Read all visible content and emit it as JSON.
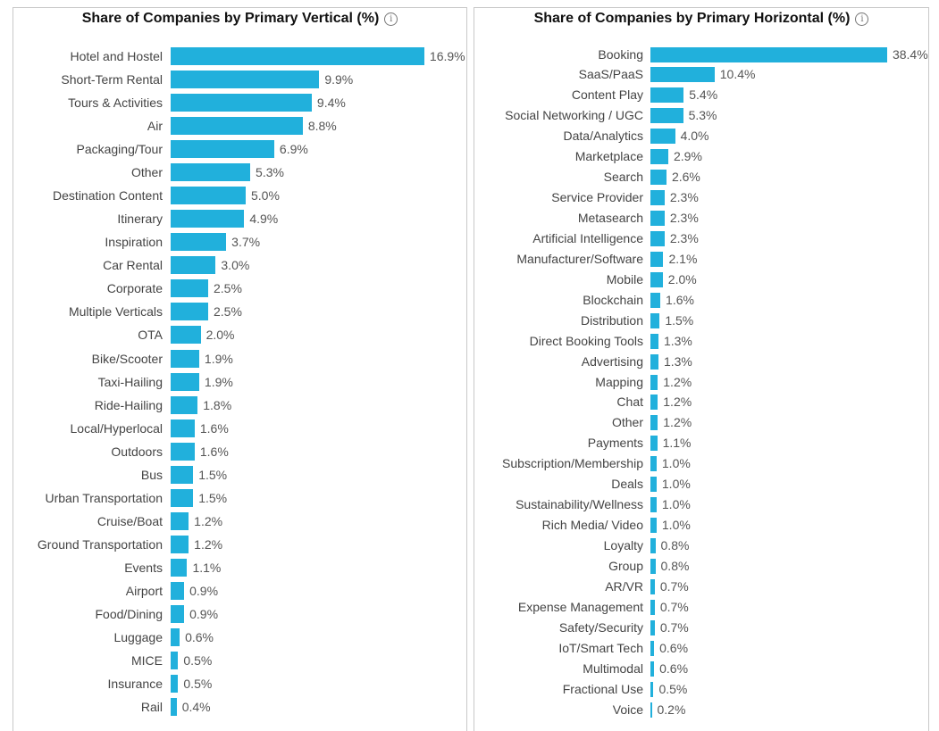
{
  "chart_data": [
    {
      "type": "bar",
      "orientation": "horizontal",
      "title": "Share of Companies by Primary Vertical (%)",
      "bar_color": "#21b0dc",
      "categories": [
        "Hotel and Hostel",
        "Short-Term Rental",
        "Tours & Activities",
        "Air",
        "Packaging/Tour",
        "Other",
        "Destination Content",
        "Itinerary",
        "Inspiration",
        "Car Rental",
        "Corporate",
        "Multiple Verticals",
        "OTA",
        "Bike/Scooter",
        "Taxi-Hailing",
        "Ride-Hailing",
        "Local/Hyperlocal",
        "Outdoors",
        "Bus",
        "Urban Transportation",
        "Cruise/Boat",
        "Ground Transportation",
        "Events",
        "Airport",
        "Food/Dining",
        "Luggage",
        "MICE",
        "Insurance",
        "Rail"
      ],
      "values": [
        16.9,
        9.9,
        9.4,
        8.8,
        6.9,
        5.3,
        5.0,
        4.9,
        3.7,
        3.0,
        2.5,
        2.5,
        2.0,
        1.9,
        1.9,
        1.8,
        1.6,
        1.6,
        1.5,
        1.5,
        1.2,
        1.2,
        1.1,
        0.9,
        0.9,
        0.6,
        0.5,
        0.5,
        0.4
      ],
      "labels": [
        "16.9%",
        "9.9%",
        "9.4%",
        "8.8%",
        "6.9%",
        "5.3%",
        "5.0%",
        "4.9%",
        "3.7%",
        "3.0%",
        "2.5%",
        "2.5%",
        "2.0%",
        "1.9%",
        "1.9%",
        "1.8%",
        "1.6%",
        "1.6%",
        "1.5%",
        "1.5%",
        "1.2%",
        "1.2%",
        "1.1%",
        "0.9%",
        "0.9%",
        "0.6%",
        "0.5%",
        "0.5%",
        "0.4%"
      ]
    },
    {
      "type": "bar",
      "orientation": "horizontal",
      "title": "Share of Companies by Primary Horizontal (%)",
      "bar_color": "#21b0dc",
      "categories": [
        "Booking",
        "SaaS/PaaS",
        "Content Play",
        "Social Networking / UGC",
        "Data/Analytics",
        "Marketplace",
        "Search",
        "Service Provider",
        "Metasearch",
        "Artificial Intelligence",
        "Manufacturer/Software",
        "Mobile",
        "Blockchain",
        "Distribution",
        "Direct Booking Tools",
        "Advertising",
        "Mapping",
        "Chat",
        "Other",
        "Payments",
        "Subscription/Membership",
        "Deals",
        "Sustainability/Wellness",
        "Rich Media/ Video",
        "Loyalty",
        "Group",
        "AR/VR",
        "Expense Management",
        "Safety/Security",
        "IoT/Smart Tech",
        "Multimodal",
        "Fractional Use",
        "Voice"
      ],
      "values": [
        38.4,
        10.4,
        5.4,
        5.3,
        4.0,
        2.9,
        2.6,
        2.3,
        2.3,
        2.3,
        2.1,
        2.0,
        1.6,
        1.5,
        1.3,
        1.3,
        1.2,
        1.2,
        1.2,
        1.1,
        1.0,
        1.0,
        1.0,
        1.0,
        0.8,
        0.8,
        0.7,
        0.7,
        0.7,
        0.6,
        0.6,
        0.5,
        0.2
      ],
      "labels": [
        "38.4%",
        "10.4%",
        "5.4%",
        "5.3%",
        "4.0%",
        "2.9%",
        "2.6%",
        "2.3%",
        "2.3%",
        "2.3%",
        "2.1%",
        "2.0%",
        "1.6%",
        "1.5%",
        "1.3%",
        "1.3%",
        "1.2%",
        "1.2%",
        "1.2%",
        "1.1%",
        "1.0%",
        "1.0%",
        "1.0%",
        "1.0%",
        "0.8%",
        "0.8%",
        "0.7%",
        "0.7%",
        "0.7%",
        "0.6%",
        "0.6%",
        "0.5%",
        "0.2%"
      ]
    }
  ]
}
